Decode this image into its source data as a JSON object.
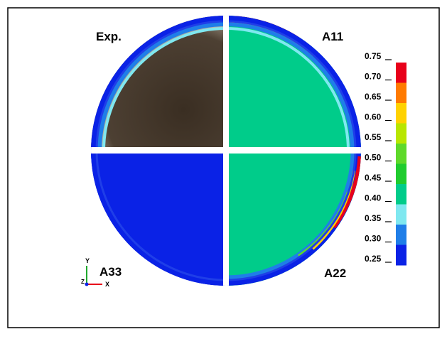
{
  "panels": {
    "experiment": "Exp.",
    "top_right": "A11",
    "bottom_right": "A22",
    "bottom_left": "A33"
  },
  "colorbar": {
    "ticks": [
      "0.75",
      "0.70",
      "0.65",
      "0.60",
      "0.55",
      "0.50",
      "0.45",
      "0.40",
      "0.35",
      "0.30",
      "0.25"
    ],
    "colors": [
      "#e8001a",
      "#ff7a00",
      "#ffd200",
      "#b8e600",
      "#5ed92a",
      "#1fcc2e",
      "#00cc8a",
      "#7fe8f0",
      "#1f7ee8",
      "#0a22e6"
    ]
  },
  "axes_triad": {
    "y": "Y",
    "z": "Z",
    "x": "X"
  }
}
